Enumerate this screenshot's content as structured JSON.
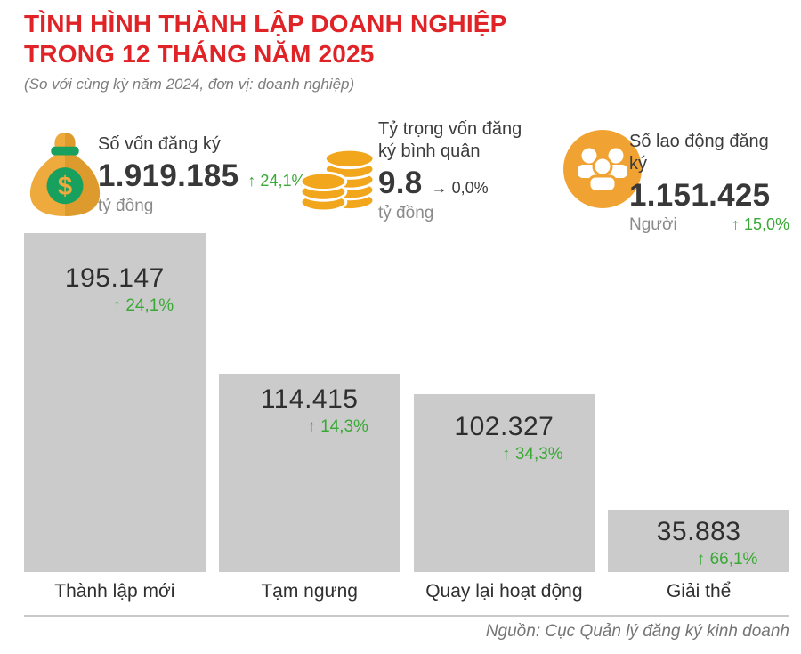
{
  "header": {
    "title_line1": "TÌNH HÌNH THÀNH LẬP DOANH NGHIỆP",
    "title_line2": "TRONG 12 THÁNG NĂM 2025",
    "subtitle": "(So với cùng kỳ năm 2024, đơn vị: doanh nghiệp)"
  },
  "stats": [
    {
      "icon": "money-bag-icon",
      "label": "Số vốn đăng ký",
      "value": "1.919.185",
      "change_arrow": "↑",
      "change": "24,1%",
      "change_direction": "up",
      "unit": "tỷ đồng"
    },
    {
      "icon": "coins-icon",
      "label_lines": [
        "Tỷ trọng vốn đăng",
        "ký bình quân"
      ],
      "value": "9.8",
      "change_arrow": "→",
      "change": "0,0%",
      "change_direction": "flat",
      "unit": "tỷ đồng"
    },
    {
      "icon": "people-icon",
      "label": "Số lao động đăng ký",
      "value": "1.151.425",
      "change_arrow": "↑",
      "change": "15,0%",
      "change_direction": "up",
      "unit": "Người"
    }
  ],
  "chart_data": {
    "type": "bar",
    "categories": [
      "Thành lập mới",
      "Tạm ngưng",
      "Quay lại hoạt động",
      "Giải thể"
    ],
    "values": [
      195147,
      114415,
      102327,
      35883
    ],
    "value_labels": [
      "195.147",
      "114.415",
      "102.327",
      "35.883"
    ],
    "changes": [
      "↑ 24,1%",
      "↑ 14,3%",
      "↑ 34,3%",
      "↑ 66,1%"
    ],
    "bar_color": "#cbcbcb",
    "value_color": "#2e2e2e",
    "change_color": "#39a935",
    "ylim": [
      0,
      195147
    ],
    "grid": false,
    "legend": false,
    "xlabel": "",
    "ylabel": ""
  },
  "footer": {
    "source": "Nguồn: Cục Quản lý đăng ký kinh doanh"
  },
  "colors": {
    "accent_red": "#e02327",
    "green_text": "#39a935",
    "gold": "#eeaa3d",
    "gold_dark": "#dd9b2e",
    "coin_gold": "#f2a61c",
    "people_orange": "#f0a232",
    "icon_green": "#17a05e",
    "bar_gray": "#cbcbcb"
  }
}
